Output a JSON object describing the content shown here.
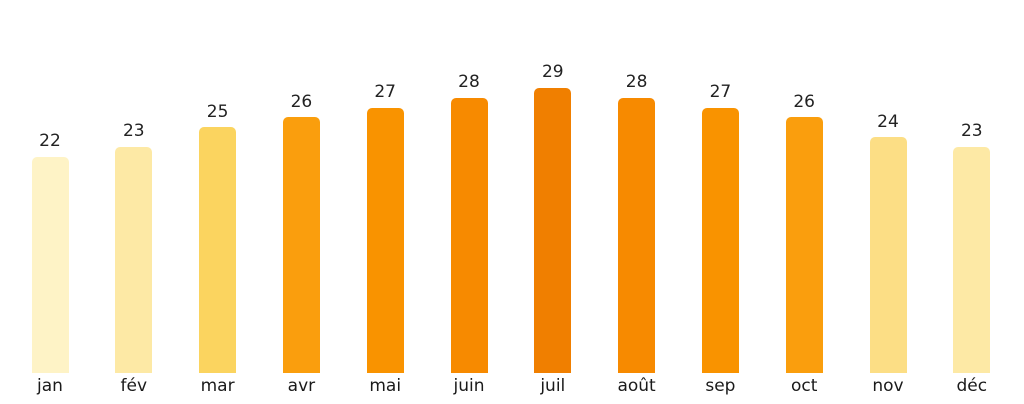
{
  "chart_data": {
    "type": "bar",
    "title": "",
    "xlabel": "",
    "ylabel": "",
    "categories": [
      "jan",
      "fév",
      "mar",
      "avr",
      "mai",
      "juin",
      "juil",
      "août",
      "sep",
      "oct",
      "nov",
      "déc"
    ],
    "values": [
      22,
      23,
      25,
      26,
      27,
      28,
      29,
      28,
      27,
      26,
      24,
      23
    ],
    "bar_colors": [
      "#FEF3C6",
      "#FDE9A5",
      "#FBD45F",
      "#FA9E0D",
      "#F99300",
      "#F78A00",
      "#F07F00",
      "#F78A00",
      "#F99300",
      "#FA9E0D",
      "#FCDE85",
      "#FDE9A5"
    ],
    "value_labels_shown": true,
    "label_color": "#222222",
    "background_color": "#FFFFFF",
    "ylim": [
      0,
      38
    ],
    "grid": false,
    "legend": "none",
    "axes_shown": false
  }
}
